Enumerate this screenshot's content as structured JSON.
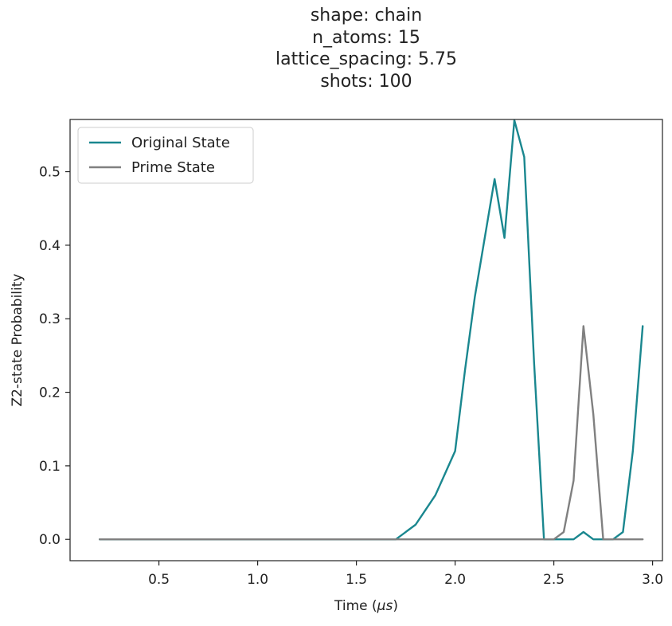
{
  "chart_data": {
    "type": "line",
    "title_lines": [
      "shape: chain",
      "n_atoms: 15",
      "lattice_spacing: 5.75",
      "shots: 100"
    ],
    "xlabel": "Time (",
    "xlabel_mu": "μs",
    "xlabel_end": ")",
    "ylabel": "Z2-state Probability",
    "xlim": [
      0.05,
      3.05
    ],
    "ylim": [
      -0.029,
      0.571
    ],
    "xticks": [
      0.5,
      1.0,
      1.5,
      2.0,
      2.5,
      3.0
    ],
    "xtick_labels": [
      "0.5",
      "1.0",
      "1.5",
      "2.0",
      "2.5",
      "3.0"
    ],
    "yticks": [
      0.0,
      0.1,
      0.2,
      0.3,
      0.4,
      0.5
    ],
    "ytick_labels": [
      "0.0",
      "0.1",
      "0.2",
      "0.3",
      "0.4",
      "0.5"
    ],
    "legend_position": "top-left",
    "series": [
      {
        "name": "Original State",
        "color": "#1a878f",
        "x": [
          0.2,
          1.7,
          1.8,
          1.85,
          1.9,
          1.95,
          2.0,
          2.05,
          2.1,
          2.2,
          2.25,
          2.3,
          2.35,
          2.4,
          2.45,
          2.5,
          2.55,
          2.6,
          2.65,
          2.7,
          2.75,
          2.8,
          2.85,
          2.9,
          2.95
        ],
        "y": [
          0.0,
          0.0,
          0.02,
          0.04,
          0.06,
          0.09,
          0.12,
          0.23,
          0.33,
          0.49,
          0.41,
          0.57,
          0.52,
          0.24,
          0.0,
          0.0,
          0.0,
          0.0,
          0.01,
          0.0,
          0.0,
          0.0,
          0.01,
          0.12,
          0.29
        ]
      },
      {
        "name": "Prime State",
        "color": "#808080",
        "x": [
          0.2,
          2.5,
          2.55,
          2.6,
          2.65,
          2.7,
          2.75,
          2.95
        ],
        "y": [
          0.0,
          0.0,
          0.01,
          0.08,
          0.29,
          0.17,
          0.0,
          0.0
        ]
      }
    ]
  }
}
